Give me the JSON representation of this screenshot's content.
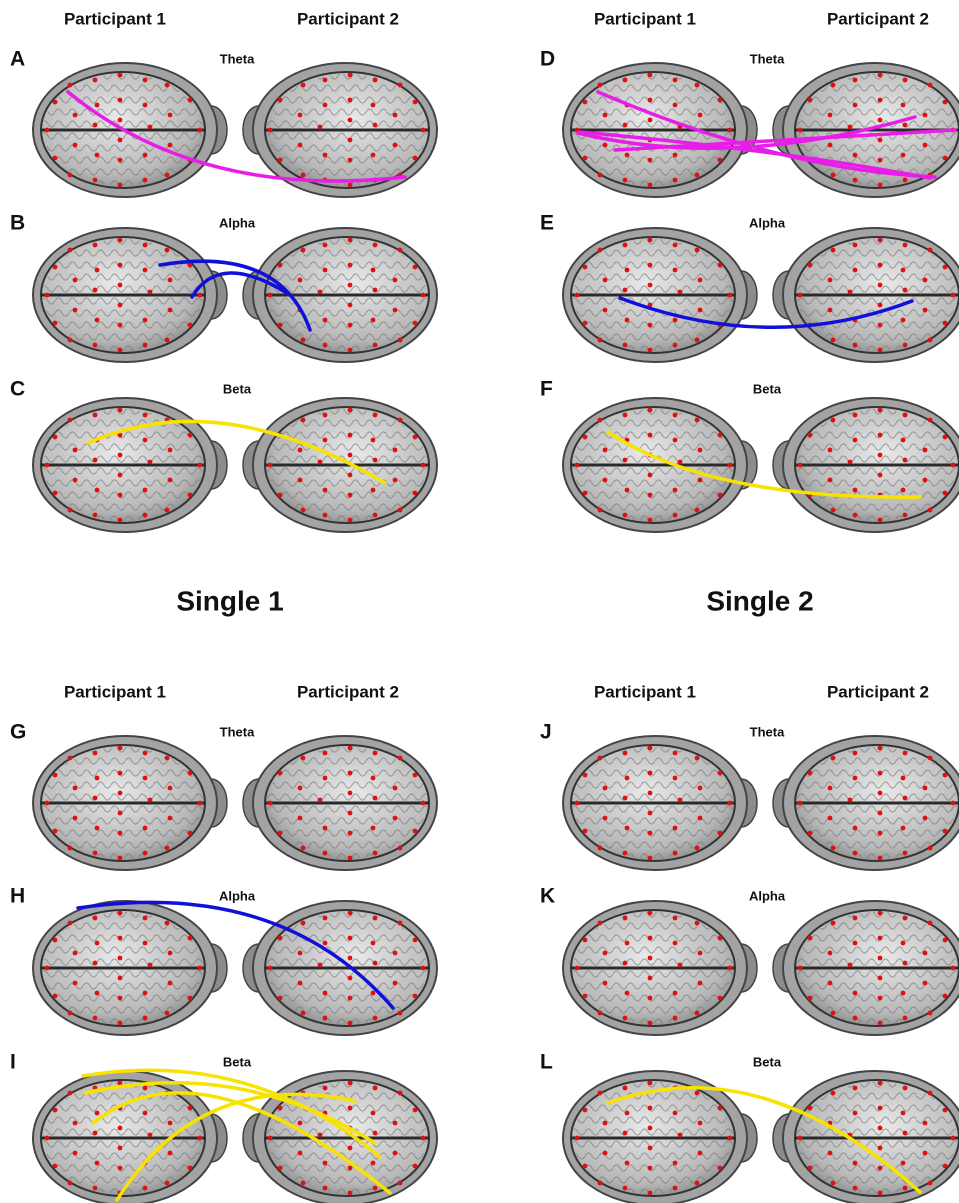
{
  "quadrants": [
    {
      "participants": [
        "Participant 1",
        "Participant 2"
      ],
      "panels": [
        {
          "label": "A",
          "band": "Theta"
        },
        {
          "label": "B",
          "band": "Alpha"
        },
        {
          "label": "C",
          "band": "Beta"
        }
      ]
    },
    {
      "participants": [
        "Participant 1",
        "Participant 2"
      ],
      "panels": [
        {
          "label": "D",
          "band": "Theta"
        },
        {
          "label": "E",
          "band": "Alpha"
        },
        {
          "label": "F",
          "band": "Beta"
        }
      ]
    },
    {
      "participants": [
        "Participant 1",
        "Participant 2"
      ],
      "panels": [
        {
          "label": "G",
          "band": "Theta"
        },
        {
          "label": "H",
          "band": "Alpha"
        },
        {
          "label": "I",
          "band": "Beta"
        }
      ]
    },
    {
      "participants": [
        "Participant 1",
        "Participant 2"
      ],
      "panels": [
        {
          "label": "J",
          "band": "Theta"
        },
        {
          "label": "K",
          "band": "Alpha"
        },
        {
          "label": "L",
          "band": "Beta"
        }
      ]
    }
  ],
  "captions": [
    "Single 1",
    "Single 2"
  ]
}
